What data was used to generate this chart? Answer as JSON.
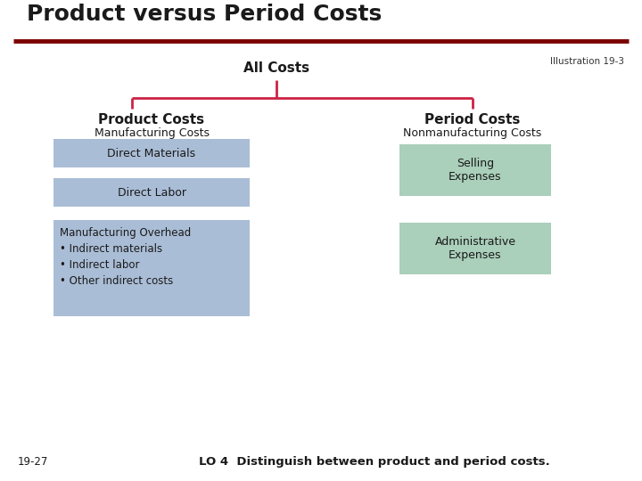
{
  "title": "Product versus Period Costs",
  "title_color": "#1a1a1a",
  "title_line_color": "#7B0000",
  "illustration_text": "Illustration 19-3",
  "all_costs_text": "All Costs",
  "branch_color": "#CC2244",
  "left_header_bold": "Product Costs",
  "left_header_sub": "Manufacturing Costs",
  "right_header_bold": "Period Costs",
  "right_header_sub": "Nonmanufacturing Costs",
  "left_boxes": [
    {
      "text": "Direct Materials"
    },
    {
      "text": "Direct Labor"
    },
    {
      "text": "Manufacturing Overhead\n• Indirect materials\n• Indirect labor\n• Other indirect costs"
    }
  ],
  "right_boxes": [
    {
      "text": "Selling\nExpenses"
    },
    {
      "text": "Administrative\nExpenses"
    }
  ],
  "left_box_color": "#AABDD6",
  "right_box_color": "#AACFBA",
  "footer_left": "19-27",
  "footer_right": "LO 4  Distinguish between product and period costs.",
  "bg_color": "#FFFFFF"
}
